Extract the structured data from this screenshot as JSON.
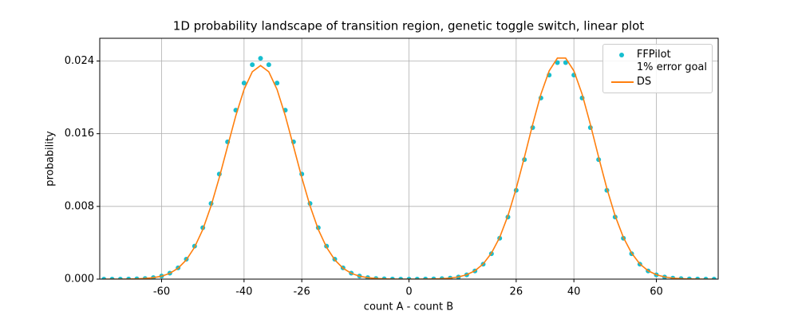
{
  "chart_data": {
    "type": "line",
    "title": "1D probability landscape of transition region, genetic toggle switch, linear plot",
    "xlabel": "count A - count B",
    "ylabel": "probability",
    "x": [
      -74,
      -72,
      -70,
      -68,
      -66,
      -64,
      -62,
      -60,
      -58,
      -56,
      -54,
      -52,
      -50,
      -48,
      -46,
      -44,
      -42,
      -40,
      -38,
      -36,
      -34,
      -32,
      -30,
      -28,
      -26,
      -24,
      -22,
      -20,
      -18,
      -16,
      -14,
      -12,
      -10,
      -8,
      -6,
      -4,
      -2,
      0,
      2,
      4,
      6,
      8,
      10,
      12,
      14,
      16,
      18,
      20,
      22,
      24,
      26,
      28,
      30,
      32,
      34,
      36,
      38,
      40,
      42,
      44,
      46,
      48,
      50,
      52,
      54,
      56,
      58,
      60,
      62,
      64,
      66,
      68,
      70,
      72,
      74
    ],
    "series": [
      {
        "name": "FFPilot\n1% error goal",
        "color": "#17becf",
        "style": "dots",
        "values": [
          0,
          0,
          0,
          1e-05,
          3e-05,
          7e-05,
          0.00016,
          0.00034,
          0.00066,
          0.00124,
          0.00219,
          0.00363,
          0.00566,
          0.00833,
          0.01156,
          0.0151,
          0.01859,
          0.02158,
          0.02359,
          0.0243,
          0.02359,
          0.02158,
          0.01859,
          0.0151,
          0.01156,
          0.00833,
          0.00566,
          0.00363,
          0.00219,
          0.00124,
          0.00066,
          0.00034,
          0.00016,
          7e-05,
          3e-05,
          1e-05,
          0,
          0,
          0,
          1e-05,
          2e-05,
          5e-05,
          0.00011,
          0.00023,
          0.00047,
          0.0009,
          0.00164,
          0.0028,
          0.0045,
          0.00683,
          0.00977,
          0.01315,
          0.01667,
          0.01993,
          0.02245,
          0.02382,
          0.02382,
          0.02245,
          0.01993,
          0.01667,
          0.01315,
          0.00977,
          0.00683,
          0.0045,
          0.0028,
          0.00164,
          0.0009,
          0.00047,
          0.00023,
          0.00011,
          5e-05,
          2e-05,
          1e-05,
          0,
          0
        ]
      },
      {
        "name": "DS",
        "color": "#ff7f0e",
        "style": "line",
        "values": [
          0,
          0,
          0,
          1e-05,
          3e-05,
          7e-05,
          0.00016,
          0.00032,
          0.00064,
          0.0012,
          0.00212,
          0.00351,
          0.00547,
          0.00806,
          0.01118,
          0.0146,
          0.01798,
          0.02087,
          0.02281,
          0.0235,
          0.02281,
          0.02087,
          0.01798,
          0.0146,
          0.01118,
          0.00806,
          0.00547,
          0.00351,
          0.00212,
          0.0012,
          0.00064,
          0.00032,
          0.00016,
          7e-05,
          3e-05,
          1e-05,
          0,
          0,
          0,
          1e-05,
          2e-05,
          5e-05,
          0.00011,
          0.00024,
          0.00048,
          0.00092,
          0.00167,
          0.00286,
          0.00459,
          0.00697,
          0.00997,
          0.01342,
          0.01702,
          0.02035,
          0.02291,
          0.02432,
          0.02432,
          0.02291,
          0.02035,
          0.01702,
          0.01342,
          0.00997,
          0.00697,
          0.00459,
          0.00286,
          0.00167,
          0.00092,
          0.00048,
          0.00024,
          0.00011,
          5e-05,
          2e-05,
          1e-05,
          0,
          0
        ]
      }
    ],
    "xlim": [
      -75,
      75
    ],
    "ylim": [
      0,
      0.0265
    ],
    "xticks": [
      -60,
      -40,
      -26,
      0,
      26,
      40,
      60
    ],
    "yticks": [
      {
        "value": 0,
        "label": "0.000"
      },
      0.008,
      0.016,
      0.024
    ],
    "grid": true,
    "legend": "upper right"
  }
}
